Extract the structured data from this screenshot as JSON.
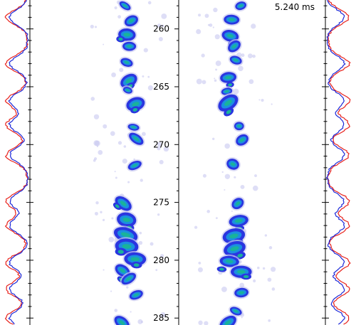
{
  "time_readout": "5.240 ms",
  "y_axis": {
    "min": 257.5,
    "max": 285.6,
    "ticks": [
      260,
      265,
      270,
      275,
      280,
      285
    ],
    "tick_labels": [
      "260",
      "265",
      "270",
      "275",
      "280",
      "285"
    ]
  },
  "colors": {
    "trace_red": "#e8201a",
    "trace_blue": "#1c28d8",
    "blob_outer": "#2a36e0",
    "blob_mid": "#1b8fe0",
    "blob_core": "#19b39a",
    "blob_haze": "#c8c8f0"
  },
  "blobs_left": [
    [
      258.0,
      3
    ],
    [
      259.3,
      4
    ],
    [
      260.5,
      5
    ],
    [
      261.5,
      4
    ],
    [
      262.9,
      4
    ],
    [
      264.5,
      5
    ],
    [
      265.3,
      3
    ],
    [
      266.5,
      6
    ],
    [
      268.5,
      3
    ],
    [
      269.5,
      4
    ],
    [
      271.8,
      4
    ],
    [
      275.1,
      5
    ],
    [
      276.5,
      6
    ],
    [
      277.8,
      7
    ],
    [
      278.8,
      7
    ],
    [
      279.9,
      6
    ],
    [
      280.9,
      5
    ],
    [
      281.6,
      4
    ],
    [
      283.0,
      4
    ],
    [
      285.4,
      5
    ]
  ],
  "blobs_right": [
    [
      258.0,
      3
    ],
    [
      259.2,
      4
    ],
    [
      260.6,
      5
    ],
    [
      261.5,
      4
    ],
    [
      262.7,
      3
    ],
    [
      264.2,
      5
    ],
    [
      265.4,
      3
    ],
    [
      266.4,
      6
    ],
    [
      268.4,
      3
    ],
    [
      269.6,
      4
    ],
    [
      271.7,
      4
    ],
    [
      275.1,
      4
    ],
    [
      276.6,
      5
    ],
    [
      277.9,
      6
    ],
    [
      279.0,
      7
    ],
    [
      280.1,
      5
    ],
    [
      281.0,
      6
    ],
    [
      282.8,
      4
    ],
    [
      284.4,
      3
    ],
    [
      285.4,
      5
    ]
  ],
  "trace_peaks": [
    259.0,
    263.0,
    266.2,
    268.3,
    270.9,
    274.9,
    277.0,
    280.2,
    282.5,
    285.0
  ]
}
